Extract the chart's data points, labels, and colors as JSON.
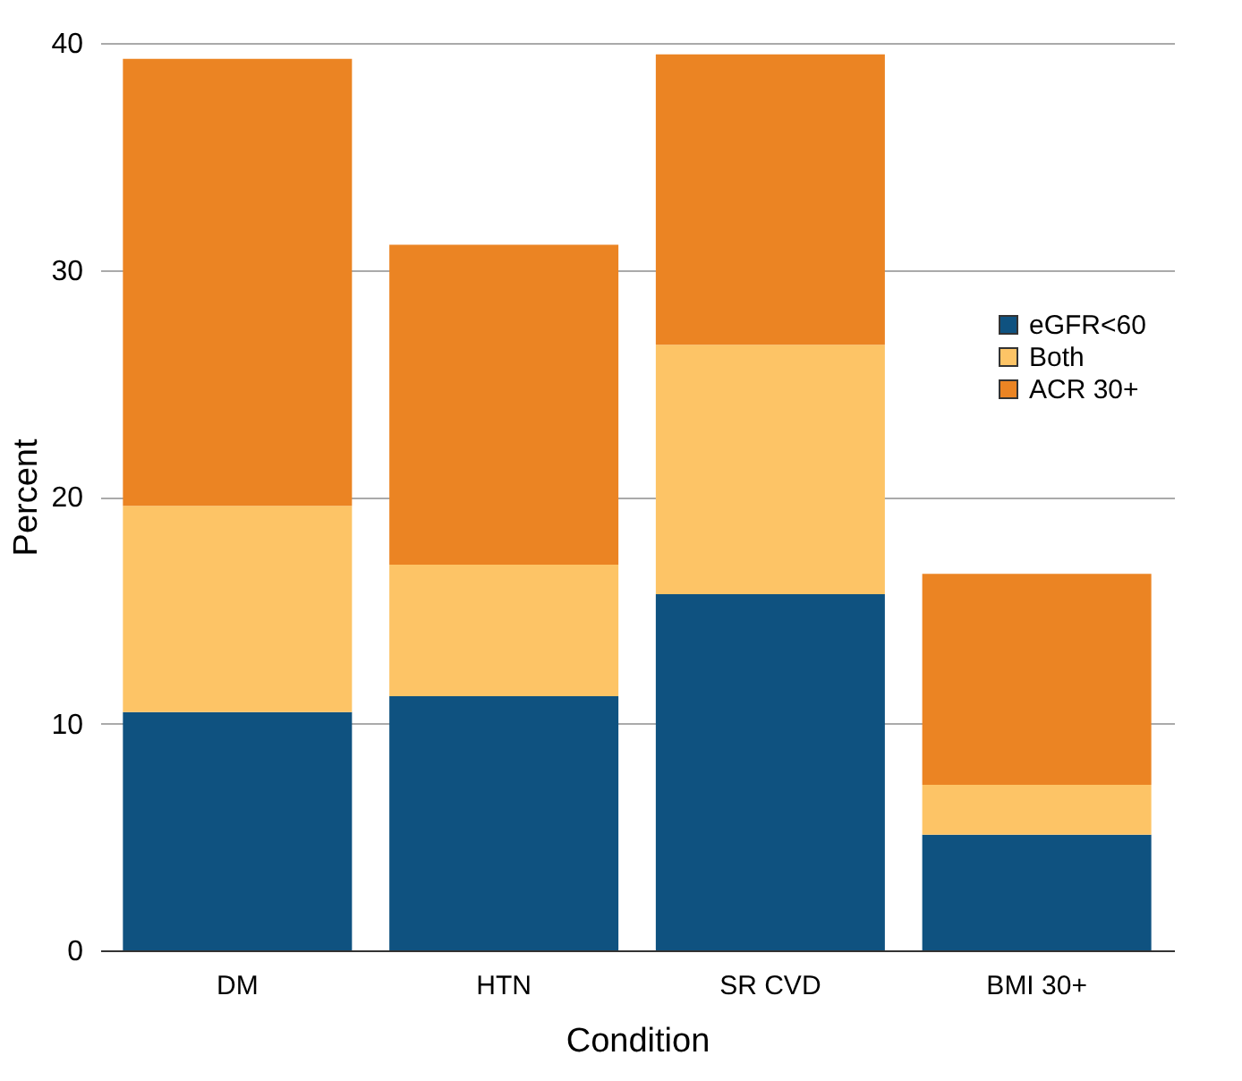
{
  "chart_data": {
    "type": "bar",
    "stacked": true,
    "xlabel": "Condition",
    "ylabel": "Percent",
    "categories": [
      "DM",
      "HTN",
      "SR CVD",
      "BMI 30+"
    ],
    "series": [
      {
        "name": "eGFR<60",
        "color": "#0f5280",
        "values": [
          10.5,
          11.2,
          15.7,
          5.1
        ]
      },
      {
        "name": "Both",
        "color": "#fdc466",
        "values": [
          9.1,
          5.8,
          11.0,
          2.2
        ]
      },
      {
        "name": "ACR 30+",
        "color": "#eb8423",
        "values": [
          19.7,
          14.1,
          12.8,
          9.3
        ]
      }
    ],
    "ylim": [
      0,
      40
    ],
    "yticks": [
      0,
      10,
      20,
      30,
      40
    ],
    "grid": "y",
    "legend": "right"
  }
}
